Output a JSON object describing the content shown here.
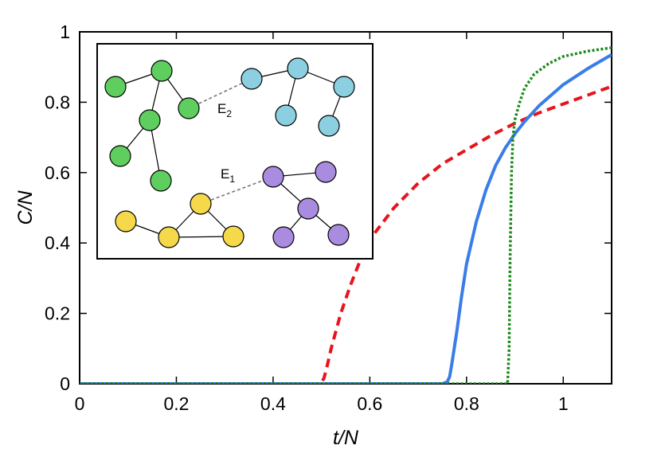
{
  "chart_data": {
    "type": "line",
    "xlabel": "t/N",
    "ylabel": "C/N",
    "xlim": [
      0,
      1.1
    ],
    "ylim": [
      0,
      1
    ],
    "grid": false,
    "x_ticks": [
      0,
      0.2,
      0.4,
      0.6,
      0.8,
      1
    ],
    "x_tick_labels": [
      "0",
      "0.2",
      "0.4",
      "0.6",
      "0.8",
      "1"
    ],
    "y_ticks": [
      0,
      0.2,
      0.4,
      0.6,
      0.8,
      1
    ],
    "y_tick_labels": [
      "0",
      "0.2",
      "0.4",
      "0.6",
      "0.8",
      "1"
    ],
    "series": [
      {
        "name": "dashed",
        "color": "#e8141c",
        "style": "dashed",
        "x": [
          0,
          0.49,
          0.5,
          0.505,
          0.51,
          0.52,
          0.54,
          0.56,
          0.58,
          0.6,
          0.65,
          0.7,
          0.75,
          0.8,
          0.85,
          0.9,
          0.95,
          1.0,
          1.05,
          1.1
        ],
        "y": [
          0,
          0,
          0.005,
          0.015,
          0.04,
          0.1,
          0.2,
          0.28,
          0.35,
          0.41,
          0.5,
          0.57,
          0.625,
          0.665,
          0.705,
          0.74,
          0.77,
          0.795,
          0.82,
          0.845
        ]
      },
      {
        "name": "solid",
        "color": "#3a7de8",
        "style": "solid",
        "x": [
          0,
          0.75,
          0.76,
          0.765,
          0.77,
          0.78,
          0.79,
          0.8,
          0.82,
          0.84,
          0.86,
          0.88,
          0.9,
          0.92,
          0.95,
          1.0,
          1.05,
          1.1
        ],
        "y": [
          0,
          0,
          0.005,
          0.02,
          0.06,
          0.15,
          0.25,
          0.34,
          0.46,
          0.55,
          0.62,
          0.67,
          0.71,
          0.745,
          0.79,
          0.85,
          0.895,
          0.935
        ]
      },
      {
        "name": "dotted",
        "color": "#1d8a1d",
        "style": "dotted",
        "x": [
          0,
          0.885,
          0.888,
          0.89,
          0.893,
          0.896,
          0.9,
          0.91,
          0.92,
          0.94,
          0.97,
          1.0,
          1.05,
          1.1
        ],
        "y": [
          0,
          0,
          0.1,
          0.35,
          0.6,
          0.7,
          0.75,
          0.8,
          0.84,
          0.88,
          0.91,
          0.93,
          0.945,
          0.955
        ]
      }
    ],
    "inset": {
      "edge_labels": [
        {
          "base": "E",
          "sub": "2"
        },
        {
          "base": "E",
          "sub": "1"
        }
      ],
      "cluster_colors": {
        "green": "#5ecf5e",
        "cyan": "#8ccfe0",
        "yellow": "#f5d94a",
        "purple": "#a98be0"
      }
    }
  }
}
